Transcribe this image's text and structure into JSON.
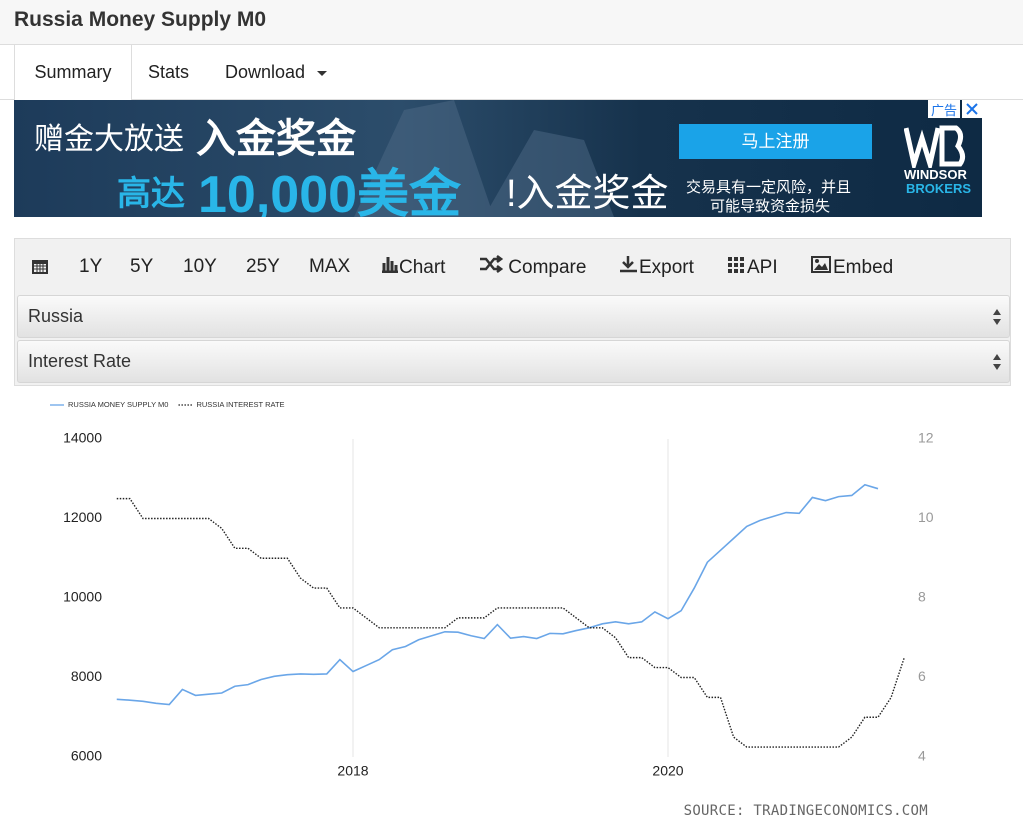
{
  "header": {
    "title": "Russia Money Supply M0"
  },
  "tabs": [
    "Summary",
    "Stats",
    "Download"
  ],
  "ad": {
    "line1a": "赠金大放送",
    "line1b": "入金奖金",
    "line2a": "高达",
    "line2b": "10,000美金",
    "line2c": "!入金奖金",
    "button": "马上注册",
    "risk1": "交易具有一定风险，并且",
    "risk2": "可能导致资金损失",
    "brand1": "WINDSOR",
    "brand2": "BROKERS",
    "badge": "广告"
  },
  "toolbar": [
    "1Y",
    "5Y",
    "10Y",
    "25Y",
    "MAX",
    "Chart",
    "Compare",
    "Export",
    "API",
    "Embed"
  ],
  "selects": [
    "Russia",
    "Interest Rate"
  ],
  "chart_data": {
    "type": "line",
    "categories": [
      null,
      null,
      null,
      null,
      null,
      null,
      null,
      null,
      null,
      null,
      null,
      null,
      null,
      null,
      null,
      null,
      null,
      null,
      "2018",
      null,
      null,
      null,
      null,
      null,
      null,
      null,
      null,
      null,
      null,
      null,
      null,
      null,
      null,
      null,
      null,
      null,
      null,
      null,
      null,
      null,
      null,
      null,
      "2020",
      null,
      null,
      null,
      null,
      null,
      null,
      null,
      null,
      null,
      null,
      null,
      null,
      null,
      null,
      null,
      null,
      null,
      null
    ],
    "series": [
      {
        "name": "RUSSIA MONEY SUPPLY M0",
        "color": "#6aa6e8",
        "dash": false,
        "values": [
          7450,
          7430,
          7400,
          7350,
          7320,
          7700,
          7550,
          7580,
          7610,
          7780,
          7820,
          7950,
          8030,
          8070,
          8090,
          8080,
          8090,
          8450,
          8150,
          8300,
          8450,
          8700,
          8780,
          8950,
          9050,
          9150,
          9140,
          9050,
          8980,
          9330,
          8990,
          9030,
          8980,
          9110,
          9100,
          9180,
          9250,
          9350,
          9400,
          9350,
          9400,
          9650,
          9480,
          9680,
          10250,
          10900,
          11200,
          11500,
          11800,
          11950,
          12050,
          12150,
          12130,
          12530,
          12450,
          12550,
          12580,
          12850,
          12750,
          null,
          null
        ]
      },
      {
        "name": "RUSSIA INTEREST RATE",
        "color": "#222222",
        "dash": true,
        "axis": "y2",
        "values": [
          10.5,
          10.5,
          10,
          10,
          10,
          10,
          10,
          10,
          9.75,
          9.25,
          9.25,
          9,
          9,
          9,
          8.5,
          8.25,
          8.25,
          7.75,
          7.75,
          7.5,
          7.25,
          7.25,
          7.25,
          7.25,
          7.25,
          7.25,
          7.5,
          7.5,
          7.5,
          7.75,
          7.75,
          7.75,
          7.75,
          7.75,
          7.75,
          7.5,
          7.25,
          7.25,
          7,
          6.5,
          6.5,
          6.25,
          6.25,
          6,
          6,
          5.5,
          5.5,
          4.5,
          4.25,
          4.25,
          4.25,
          4.25,
          4.25,
          4.25,
          4.25,
          4.25,
          4.5,
          5,
          5,
          5.5,
          6.5
        ]
      }
    ],
    "ylim": [
      6000,
      14000
    ],
    "yticks": [
      6000,
      8000,
      10000,
      12000,
      14000
    ],
    "y2lim": [
      4,
      12
    ],
    "y2ticks": [
      4,
      6,
      8,
      10,
      12
    ],
    "xgrid": true,
    "source": "SOURCE: TRADINGECONOMICS.COM"
  }
}
